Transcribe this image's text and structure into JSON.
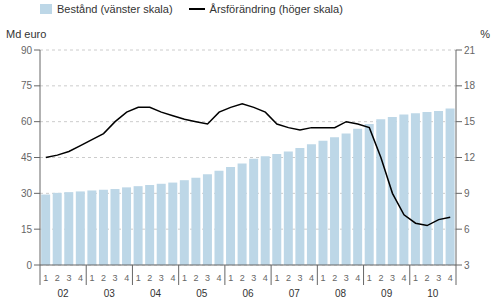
{
  "chart_data": {
    "type": "bar",
    "categories": [
      "1",
      "2",
      "3",
      "4",
      "1",
      "2",
      "3",
      "4",
      "1",
      "2",
      "3",
      "4",
      "1",
      "2",
      "3",
      "4",
      "1",
      "2",
      "3",
      "4",
      "1",
      "2",
      "3",
      "4",
      "1",
      "2",
      "3",
      "4",
      "1",
      "2",
      "3",
      "4",
      "1",
      "2",
      "3",
      "4"
    ],
    "annotations": [
      "02",
      "03",
      "04",
      "05",
      "06",
      "07",
      "08",
      "09",
      "10"
    ],
    "ylabel": "Md euro",
    "y2label": "%",
    "series": [
      {
        "name": "Bestånd (vänster skala)",
        "type": "bar",
        "color": "#bdd7e7",
        "values": [
          29.5,
          30.2,
          30.5,
          30.8,
          31.2,
          31.5,
          31.8,
          32.5,
          33.0,
          33.5,
          34.0,
          34.5,
          35.5,
          36.5,
          38.0,
          39.5,
          41.0,
          42.5,
          44.5,
          45.5,
          46.5,
          47.5,
          49.0,
          50.5,
          52.0,
          53.5,
          55.0,
          57.0,
          59.0,
          61.0,
          62.0,
          63.0,
          63.5,
          64.0,
          64.5,
          65.5
        ]
      },
      {
        "name": "Årsförändring (höger skala)",
        "type": "line",
        "axis": "y2",
        "color": "#000000",
        "values": [
          12.0,
          12.2,
          12.5,
          13.0,
          13.5,
          14.0,
          15.0,
          15.8,
          16.2,
          16.2,
          15.8,
          15.5,
          15.2,
          15.0,
          14.8,
          15.8,
          16.2,
          16.5,
          16.2,
          15.8,
          14.8,
          14.5,
          14.3,
          14.5,
          14.5,
          14.5,
          15.0,
          14.8,
          14.5,
          12.0,
          9.0,
          7.2,
          6.5,
          6.3,
          6.8,
          7.0
        ]
      }
    ],
    "ylim": [
      0,
      90
    ],
    "yticks": [
      0,
      15,
      30,
      45,
      60,
      75,
      90
    ],
    "y2lim": [
      3,
      21
    ],
    "y2ticks": [
      3,
      6,
      9,
      12,
      15,
      18,
      21
    ],
    "grid": true,
    "legend": "upper left"
  }
}
